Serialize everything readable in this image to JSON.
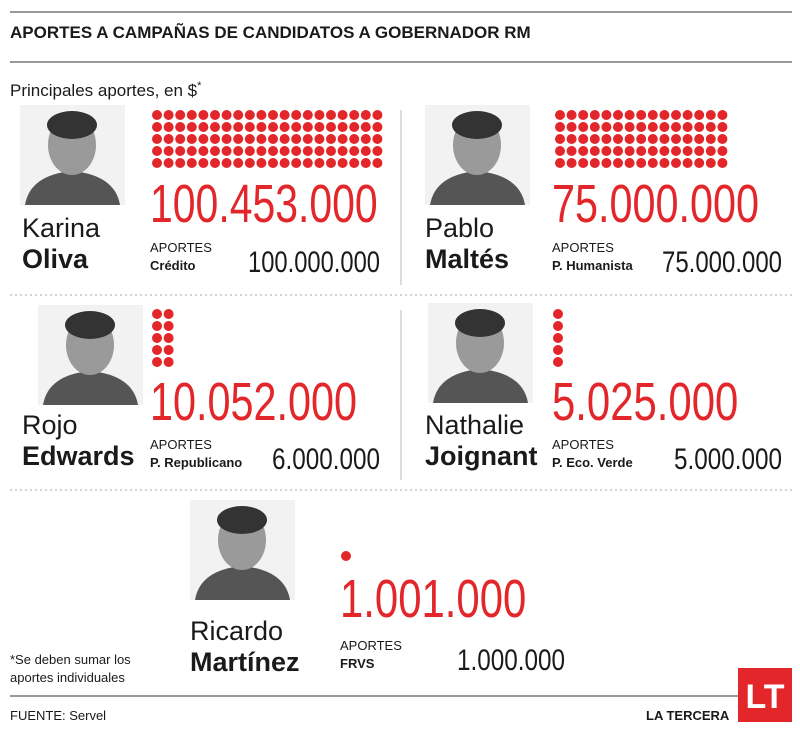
{
  "header": {
    "title": "APORTES A CAMPAÑAS DE CANDIDATOS A GOBERNADOR RM",
    "subtitle": "Principales aportes, en $",
    "subtitle_mark": "*"
  },
  "candidates": [
    {
      "first_name": "Karina",
      "last_name": "Oliva",
      "total": 100453000,
      "total_label": "100.453.000",
      "aportes_label": "APORTES",
      "source": "Crédito",
      "main_amount": "100.000.000"
    },
    {
      "first_name": "Pablo",
      "last_name": "Maltés",
      "total": 75000000,
      "total_label": "75.000.000",
      "aportes_label": "APORTES",
      "source": "P. Humanista",
      "main_amount": "75.000.000"
    },
    {
      "first_name": "Rojo",
      "last_name": "Edwards",
      "total": 10052000,
      "total_label": "10.052.000",
      "aportes_label": "APORTES",
      "source": "P. Republicano",
      "main_amount": "6.000.000"
    },
    {
      "first_name": "Nathalie",
      "last_name": "Joignant",
      "total": 5025000,
      "total_label": "5.025.000",
      "aportes_label": "APORTES",
      "source": "P. Eco. Verde",
      "main_amount": "5.000.000"
    },
    {
      "first_name": "Ricardo",
      "last_name": "Martínez",
      "total": 1001000,
      "total_label": "1.001.000",
      "aportes_label": "APORTES",
      "source": "FRVS",
      "main_amount": "1.000.000"
    }
  ],
  "footnote": [
    "*Se deben sumar los",
    "aportes individuales"
  ],
  "footer": {
    "source": "FUENTE: Servel",
    "brand": "LA TERCERA",
    "logo": "LT"
  }
}
